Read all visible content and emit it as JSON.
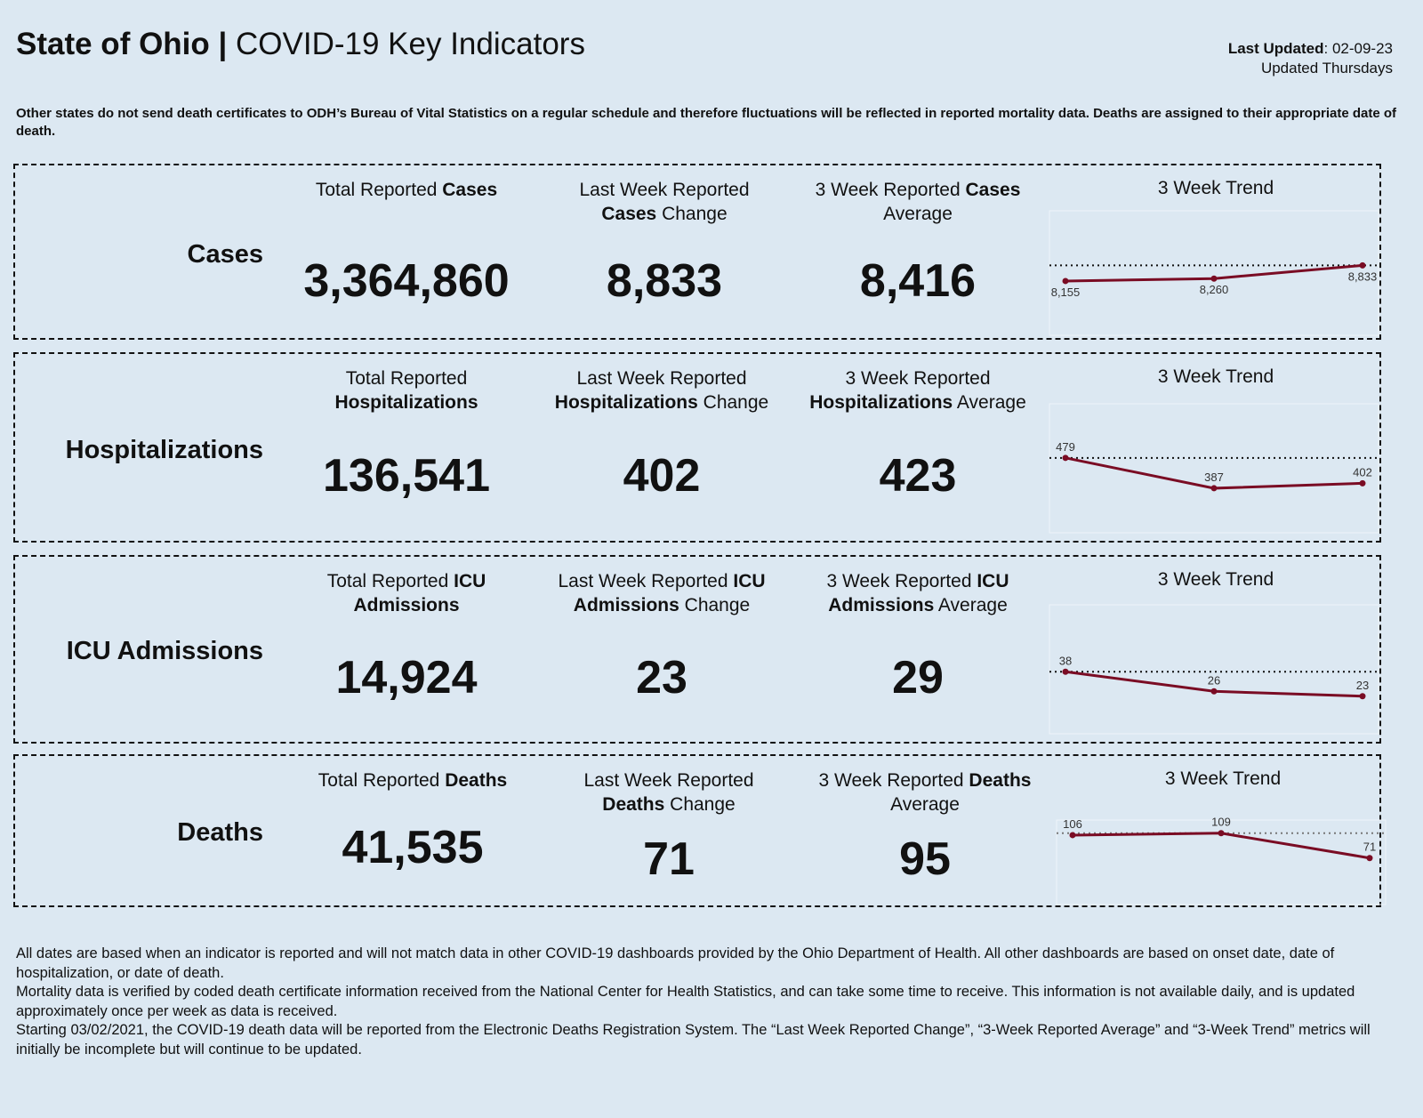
{
  "header": {
    "title_bold": "State of Ohio |",
    "title_rest": " COVID-19 Key Indicators",
    "last_updated_label": "Last Updated",
    "last_updated_value": ": 02-09-23",
    "update_schedule": "Updated Thursdays"
  },
  "note": "Other states do not send death certificates to ODH’s Bureau of Vital Statistics on a regular schedule and therefore fluctuations will be reflected in reported mortality data. Deaths are assigned to their appropriate date of death.",
  "colors": {
    "background": "#dce8f2",
    "trend_line": "#7a0c24"
  },
  "panels": [
    {
      "label": "Cases",
      "headers": [
        [
          [
            "Total Reported ",
            0
          ],
          [
            "Cases",
            1
          ]
        ],
        [
          [
            "Last Week Reported",
            0
          ],
          [
            "\n",
            0
          ],
          [
            "Cases",
            1
          ],
          [
            " Change",
            0
          ]
        ],
        [
          [
            "3 Week Reported ",
            0
          ],
          [
            "Cases",
            1
          ],
          [
            "\n",
            0
          ],
          [
            "Average",
            0
          ]
        ]
      ],
      "values": [
        "3,364,860",
        "8,833",
        "8,416"
      ],
      "trend_title": "3 Week Trend"
    },
    {
      "label": "Hospitalizations",
      "headers": [
        [
          [
            "Total Reported",
            0
          ],
          [
            "\n",
            0
          ],
          [
            "Hospitalizations",
            1
          ]
        ],
        [
          [
            "Last Week Reported",
            0
          ],
          [
            "\n",
            0
          ],
          [
            "Hospitalizations",
            1
          ],
          [
            " Change",
            0
          ]
        ],
        [
          [
            "3 Week Reported",
            0
          ],
          [
            "\n",
            0
          ],
          [
            "Hospitalizations",
            1
          ],
          [
            " Average",
            0
          ]
        ]
      ],
      "values": [
        "136,541",
        "402",
        "423"
      ],
      "trend_title": "3 Week Trend"
    },
    {
      "label": "ICU Admissions",
      "headers": [
        [
          [
            "Total Reported ",
            0
          ],
          [
            "ICU",
            1
          ],
          [
            "\n",
            0
          ],
          [
            "Admissions",
            1
          ]
        ],
        [
          [
            "Last Week Reported ",
            0
          ],
          [
            "ICU",
            1
          ],
          [
            "\n",
            0
          ],
          [
            "Admissions",
            1
          ],
          [
            " Change",
            0
          ]
        ],
        [
          [
            "3 Week Reported ",
            0
          ],
          [
            "ICU",
            1
          ],
          [
            "\n",
            0
          ],
          [
            "Admissions",
            1
          ],
          [
            " Average",
            0
          ]
        ]
      ],
      "values": [
        "14,924",
        "23",
        "29"
      ],
      "trend_title": "3 Week Trend"
    },
    {
      "label": "Deaths",
      "headers": [
        [
          [
            "Total Reported ",
            0
          ],
          [
            "Deaths",
            1
          ]
        ],
        [
          [
            "Last Week Reported",
            0
          ],
          [
            "\n",
            0
          ],
          [
            "Deaths",
            1
          ],
          [
            " Change",
            0
          ]
        ],
        [
          [
            "3 Week Reported ",
            0
          ],
          [
            "Deaths",
            1
          ],
          [
            "\n",
            0
          ],
          [
            "Average",
            0
          ]
        ]
      ],
      "values": [
        "41,535",
        "71",
        "95"
      ],
      "trend_title": "3 Week Trend"
    }
  ],
  "chart_data": [
    {
      "type": "line",
      "title": "3 Week Trend",
      "values": [
        8155,
        8260,
        8833
      ],
      "labels": [
        "8,155",
        "8,260",
        "8,833"
      ],
      "reference_line": 8833,
      "ylim": [
        5800,
        11200
      ]
    },
    {
      "type": "line",
      "title": "3 Week Trend",
      "values": [
        479,
        387,
        402
      ],
      "labels": [
        "479",
        "387",
        "402"
      ],
      "reference_line": 479,
      "ylim": [
        252,
        643
      ]
    },
    {
      "type": "line",
      "title": "3 Week Trend",
      "values": [
        38,
        26,
        23
      ],
      "labels": [
        "38",
        "26",
        "23"
      ],
      "reference_line": 38,
      "ylim": [
        0,
        79
      ]
    },
    {
      "type": "line",
      "title": "3 Week Trend",
      "values": [
        106,
        109,
        71
      ],
      "labels": [
        "106",
        "109",
        "71"
      ],
      "reference_line": 109,
      "ylim": [
        0,
        129
      ]
    }
  ],
  "footer": [
    "All dates are based when an indicator is reported and will not match data in other COVID-19 dashboards provided by the Ohio Department of Health. All other dashboards are based on onset date, date of hospitalization, or date of death.",
    "Mortality data is verified by coded death certificate information received from the National Center for Health Statistics, and can take some time to receive. This information is not available daily, and is updated approximately once per week as data is received.",
    "Starting 03/02/2021, the COVID-19 death data will be reported from the Electronic Deaths Registration System. The “Last Week Reported Change”, “3-Week Reported Average” and “3-Week Trend” metrics will initially be incomplete but will continue to be updated."
  ]
}
